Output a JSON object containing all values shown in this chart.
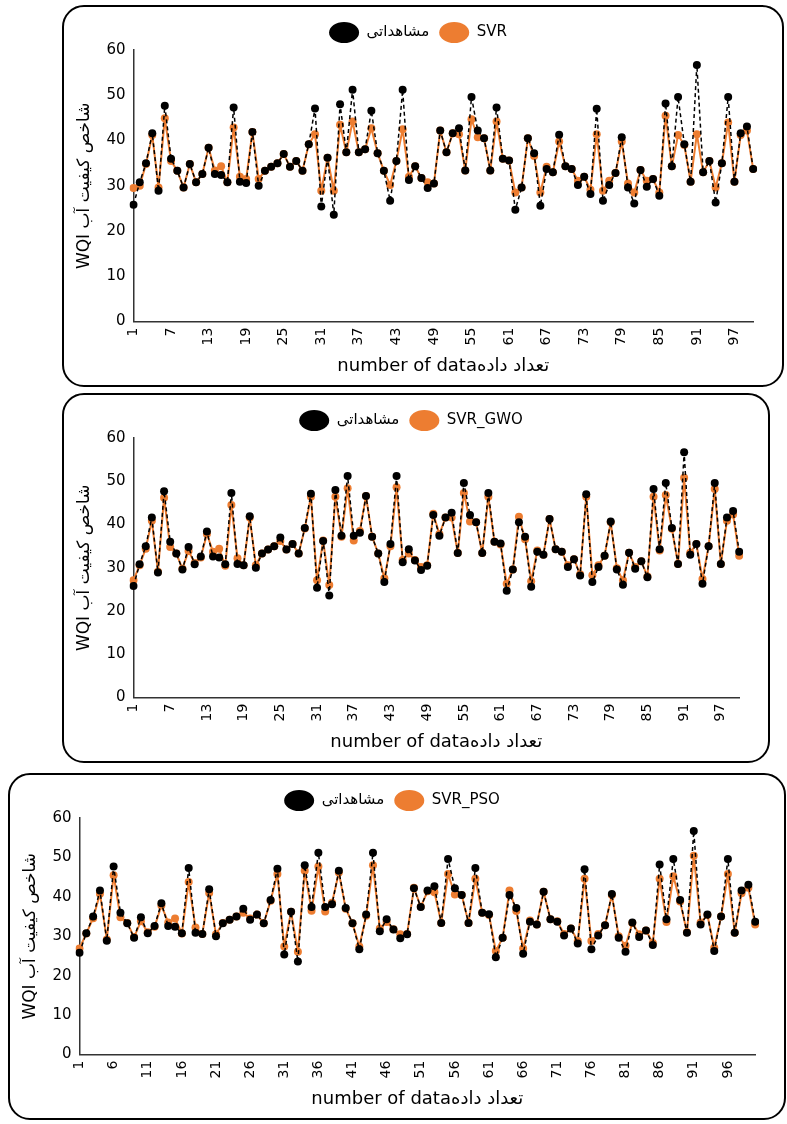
{
  "chart_data": [
    {
      "type": "line",
      "xlabel": "number of dataتعداد داده",
      "ylabel": "WQI شاخص کیفیت آب",
      "ylim": [
        0,
        60
      ],
      "yticks": [
        0,
        10,
        20,
        30,
        40,
        50,
        60
      ],
      "grid": false,
      "legend": "top",
      "marker": "circle",
      "categories": [
        "1",
        null,
        null,
        null,
        null,
        null,
        "7",
        null,
        null,
        null,
        null,
        null,
        "13",
        null,
        null,
        null,
        null,
        null,
        "19",
        null,
        null,
        null,
        null,
        null,
        "25",
        null,
        null,
        null,
        null,
        null,
        "31",
        null,
        null,
        null,
        null,
        null,
        "37",
        null,
        null,
        null,
        null,
        null,
        "43",
        null,
        null,
        null,
        null,
        null,
        "49",
        null,
        null,
        null,
        null,
        null,
        "55",
        null,
        null,
        null,
        null,
        null,
        "61",
        null,
        null,
        null,
        null,
        null,
        "67",
        null,
        null,
        null,
        null,
        null,
        "73",
        null,
        null,
        null,
        null,
        null,
        "79",
        null,
        null,
        null,
        null,
        null,
        "85",
        null,
        null,
        null,
        null,
        null,
        "91",
        null,
        null,
        null,
        null,
        null,
        "97",
        null,
        null,
        null
      ],
      "series": [
        {
          "name": "مشاهداتی",
          "color": "#000000",
          "line_style": "dashed",
          "values": [
            25.8,
            30.8,
            35,
            41.6,
            28.9,
            47.7,
            36,
            33.3,
            29.6,
            34.8,
            30.8,
            32.6,
            38.4,
            32.6,
            32.4,
            30.8,
            47.3,
            30.9,
            30.6,
            41.9,
            30,
            33.3,
            34.2,
            35,
            37,
            34.2,
            35.5,
            33.3,
            39.2,
            47.1,
            25.4,
            36.2,
            23.6,
            48,
            37.4,
            51.2,
            37.4,
            38.1,
            46.6,
            37.2,
            33.3,
            26.7,
            35.5,
            51.2,
            31.3,
            34.3,
            31.7,
            29.5,
            30.5,
            42.2,
            37.4,
            41.6,
            42.7,
            33.4,
            49.6,
            42.2,
            40.5,
            33.4,
            47.3,
            36,
            35.6,
            24.7,
            29.6,
            40.5,
            37.2,
            25.6,
            33.7,
            33,
            41.3,
            34.3,
            33.7,
            30.2,
            32,
            28.2,
            47,
            26.7,
            30.2,
            32.8,
            40.7,
            29.6,
            26.1,
            33.5,
            29.8,
            31.5,
            27.8,
            48.2,
            34.3,
            49.6,
            39.2,
            30.9,
            56.7,
            33,
            35.5,
            26.3,
            35,
            49.6,
            30.9,
            41.6,
            43.1,
            33.7
          ]
        },
        {
          "name": "SVR",
          "color": "#ed7d31",
          "line_style": "solid",
          "values": [
            29.5,
            30,
            34.8,
            41.2,
            29.6,
            44.9,
            35.5,
            33.3,
            29.6,
            34.8,
            30.8,
            32.6,
            38.4,
            33.4,
            34.3,
            30.8,
            42.9,
            32,
            31.5,
            41.9,
            31.5,
            33.3,
            34.2,
            35,
            37,
            34.2,
            35.5,
            33.3,
            39.2,
            41.4,
            28.9,
            36.2,
            28.9,
            43.5,
            37.4,
            44.2,
            37.4,
            38.1,
            42.7,
            37.2,
            33.3,
            30.2,
            35.5,
            42.5,
            32,
            34.3,
            31.7,
            30.8,
            30.5,
            42.2,
            37.4,
            41.6,
            41.4,
            33.4,
            44.7,
            40.7,
            40.5,
            33.4,
            44.2,
            36,
            35.6,
            28.5,
            29.6,
            40.5,
            36.6,
            28.5,
            34.2,
            33,
            39.8,
            34.3,
            33.7,
            31.1,
            32,
            29.1,
            41.4,
            28.9,
            31.1,
            32.8,
            39.8,
            30.5,
            28.5,
            33.5,
            31.1,
            31.5,
            28.5,
            45.5,
            34.3,
            41.2,
            39,
            30.9,
            41.4,
            33,
            35.5,
            29.6,
            35,
            44,
            30.9,
            41.2,
            42.2,
            33.7
          ]
        }
      ]
    },
    {
      "type": "line",
      "xlabel": "number of dataتعداد داده",
      "ylabel": "WQI شاخص کیفیت آب",
      "ylim": [
        0,
        60
      ],
      "yticks": [
        0,
        10,
        20,
        30,
        40,
        50,
        60
      ],
      "grid": false,
      "legend": "top",
      "marker": "circle",
      "categories": [
        "1",
        null,
        null,
        null,
        null,
        null,
        "7",
        null,
        null,
        null,
        null,
        null,
        "13",
        null,
        null,
        null,
        null,
        null,
        "19",
        null,
        null,
        null,
        null,
        null,
        "25",
        null,
        null,
        null,
        null,
        null,
        "31",
        null,
        null,
        null,
        null,
        null,
        "37",
        null,
        null,
        null,
        null,
        null,
        "43",
        null,
        null,
        null,
        null,
        null,
        "49",
        null,
        null,
        null,
        null,
        null,
        "55",
        null,
        null,
        null,
        null,
        null,
        "61",
        null,
        null,
        null,
        null,
        null,
        "67",
        null,
        null,
        null,
        null,
        null,
        "73",
        null,
        null,
        null,
        null,
        null,
        "79",
        null,
        null,
        null,
        null,
        null,
        "85",
        null,
        null,
        null,
        null,
        null,
        "91",
        null,
        null,
        null,
        null,
        null,
        "97",
        null,
        null,
        null
      ],
      "series": [
        {
          "name": "مشاهداتی",
          "color": "#000000",
          "line_style": "dashed",
          "values": [
            25.8,
            30.8,
            35,
            41.6,
            28.9,
            47.7,
            36,
            33.3,
            29.6,
            34.8,
            30.8,
            32.6,
            38.4,
            32.6,
            32.4,
            30.8,
            47.3,
            30.9,
            30.6,
            41.9,
            30,
            33.3,
            34.2,
            35,
            37,
            34.2,
            35.5,
            33.3,
            39.2,
            47.1,
            25.4,
            36.2,
            23.6,
            48,
            37.4,
            51.2,
            37.4,
            38.1,
            46.6,
            37.2,
            33.3,
            26.7,
            35.5,
            51.2,
            31.3,
            34.3,
            31.7,
            29.5,
            30.5,
            42.2,
            37.4,
            41.6,
            42.7,
            33.4,
            49.6,
            42.2,
            40.5,
            33.4,
            47.3,
            36,
            35.6,
            24.7,
            29.6,
            40.5,
            37.2,
            25.6,
            33.7,
            33,
            41.3,
            34.3,
            33.7,
            30.2,
            32,
            28.2,
            47,
            26.7,
            30.2,
            32.8,
            40.7,
            29.6,
            26.1,
            33.5,
            29.8,
            31.5,
            27.8,
            48.2,
            34.3,
            49.6,
            39.2,
            30.9,
            56.7,
            33,
            35.5,
            26.3,
            35,
            49.6,
            30.9,
            41.6,
            43.1,
            33.7
          ]
        },
        {
          "name": "SVR_GWO",
          "color": "#ed7d31",
          "line_style": "solid",
          "values": [
            27.1,
            30.6,
            34.4,
            40.9,
            29.1,
            46.2,
            34.8,
            33.3,
            29.8,
            33.9,
            31.1,
            32.4,
            37.8,
            33.7,
            34.4,
            30.5,
            44.5,
            32.2,
            30.6,
            41.6,
            30.6,
            33.3,
            34.2,
            35,
            36.2,
            34.2,
            35.5,
            33.3,
            39.1,
            46.4,
            27.1,
            36.3,
            26,
            46.4,
            37.2,
            48.4,
            36.3,
            38.5,
            46.6,
            37.2,
            33.3,
            27.6,
            35,
            48.6,
            31.8,
            33.3,
            31.8,
            30.2,
            30.6,
            42.5,
            37.8,
            41.6,
            41.6,
            33.4,
            47.3,
            40.7,
            40.5,
            33.4,
            46.4,
            36,
            35.4,
            26.3,
            29.6,
            41.8,
            36.6,
            26.9,
            34,
            33,
            41.3,
            34.3,
            33.7,
            30.6,
            32,
            28.5,
            46.4,
            28.3,
            30.6,
            32.8,
            40.5,
            29.9,
            27.1,
            33.5,
            30.2,
            31.5,
            28,
            46.4,
            34,
            46.8,
            39,
            30.9,
            50.8,
            33.5,
            35.5,
            27.4,
            35,
            48.2,
            30.9,
            40.9,
            42.3,
            32.8
          ]
        }
      ]
    },
    {
      "type": "line",
      "xlabel": "number of dataتعداد داده",
      "ylabel": "WQI شاخص کیفیت آب",
      "ylim": [
        0,
        60
      ],
      "yticks": [
        0,
        10,
        20,
        30,
        40,
        50,
        60
      ],
      "grid": false,
      "legend": "top",
      "marker": "circle",
      "categories": [
        "1",
        null,
        null,
        null,
        null,
        "6",
        null,
        null,
        null,
        null,
        "11",
        null,
        null,
        null,
        null,
        "16",
        null,
        null,
        null,
        null,
        "21",
        null,
        null,
        null,
        null,
        "26",
        null,
        null,
        null,
        null,
        "31",
        null,
        null,
        null,
        null,
        "36",
        null,
        null,
        null,
        null,
        "41",
        null,
        null,
        null,
        null,
        "46",
        null,
        null,
        null,
        null,
        "51",
        null,
        null,
        null,
        null,
        "56",
        null,
        null,
        null,
        null,
        "61",
        null,
        null,
        null,
        null,
        "66",
        null,
        null,
        null,
        null,
        "71",
        null,
        null,
        null,
        null,
        "76",
        null,
        null,
        null,
        null,
        "81",
        null,
        null,
        null,
        null,
        "86",
        null,
        null,
        null,
        null,
        "91",
        null,
        null,
        null,
        null,
        "96",
        null,
        null,
        null,
        null
      ],
      "series": [
        {
          "name": "مشاهداتی",
          "color": "#000000",
          "line_style": "dashed",
          "values": [
            25.8,
            30.8,
            35,
            41.6,
            28.9,
            47.7,
            36,
            33.3,
            29.6,
            34.8,
            30.8,
            32.6,
            38.4,
            32.6,
            32.4,
            30.8,
            47.3,
            30.9,
            30.6,
            41.9,
            30,
            33.3,
            34.2,
            35,
            37,
            34.2,
            35.5,
            33.3,
            39.2,
            47.1,
            25.4,
            36.2,
            23.6,
            48,
            37.4,
            51.2,
            37.4,
            38.1,
            46.6,
            37.2,
            33.3,
            26.7,
            35.5,
            51.2,
            31.3,
            34.3,
            31.7,
            29.5,
            30.5,
            42.2,
            37.4,
            41.6,
            42.7,
            33.4,
            49.6,
            42.2,
            40.5,
            33.4,
            47.3,
            36,
            35.6,
            24.7,
            29.6,
            40.5,
            37.2,
            25.6,
            33.7,
            33,
            41.3,
            34.3,
            33.7,
            30.2,
            32,
            28.2,
            47,
            26.7,
            30.2,
            32.8,
            40.7,
            29.6,
            26.1,
            33.5,
            29.8,
            31.5,
            27.8,
            48.2,
            34.3,
            49.6,
            39.2,
            30.9,
            56.7,
            33,
            35.5,
            26.3,
            35,
            49.6,
            30.9,
            41.6,
            43.1,
            33.7
          ]
        },
        {
          "name": "SVR_PSO",
          "color": "#ed7d31",
          "line_style": "solid",
          "values": [
            26.9,
            30.7,
            34.6,
            40.8,
            29.2,
            45.5,
            34.8,
            33.4,
            29.8,
            33.8,
            31,
            32.4,
            37.8,
            33.5,
            34.5,
            30.7,
            43.8,
            32.2,
            30.6,
            41,
            30.5,
            33.4,
            34.2,
            35,
            36,
            34.5,
            35.5,
            33.3,
            39,
            45.8,
            27.4,
            36.2,
            26.1,
            46.6,
            36.5,
            47.7,
            36.3,
            38.5,
            46.2,
            37,
            33.3,
            27.4,
            35.2,
            48,
            32,
            33.6,
            31.8,
            30.5,
            30.6,
            42.3,
            37.5,
            41.4,
            41.2,
            33.4,
            45.8,
            40.6,
            40.5,
            33.4,
            44.6,
            36,
            35.4,
            26.3,
            29.6,
            41.6,
            36.4,
            26.9,
            34,
            33,
            41.3,
            34.3,
            33.8,
            30.6,
            32,
            28.8,
            44.6,
            28.8,
            30.6,
            32.8,
            40.5,
            30,
            27.6,
            33.4,
            30.5,
            31.5,
            28.3,
            44.6,
            33.6,
            45.2,
            38.8,
            31,
            50.4,
            33.5,
            35.4,
            27.1,
            35,
            45.8,
            30.9,
            40.9,
            42.3,
            33
          ]
        }
      ]
    }
  ]
}
